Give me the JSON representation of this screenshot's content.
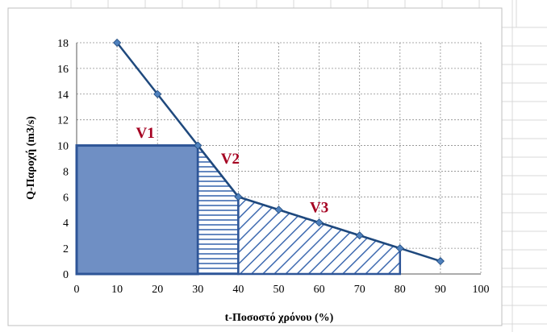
{
  "colors": {
    "series": "#1F497D",
    "region_fill": "#6F8FC4",
    "region_edge": "#2E5597",
    "hatch": "#3E6AB0",
    "label": "#A50021",
    "grid": "#8C8C8C",
    "sheet_grid": "#D9D9D9"
  },
  "chart_data": {
    "type": "line",
    "xlabel": "t-Ποσοστό χρόνου (%)",
    "ylabel": "Q-Παροχή (m3/s)",
    "xlim": [
      0,
      100
    ],
    "ylim": [
      0,
      18
    ],
    "xticks": [
      0,
      10,
      20,
      30,
      40,
      50,
      60,
      70,
      80,
      90,
      100
    ],
    "yticks": [
      0,
      2,
      4,
      6,
      8,
      10,
      12,
      14,
      16,
      18
    ],
    "grid": true,
    "series": [
      {
        "x": [
          10,
          20,
          30,
          40,
          50,
          60,
          70,
          80,
          90
        ],
        "y": [
          18,
          14,
          10,
          6,
          5,
          4,
          3,
          2,
          1
        ]
      }
    ],
    "regions": [
      {
        "label": "V1",
        "x_from": 0,
        "x_to": 30,
        "fill": "solid",
        "label_pos": [
          17,
          10.6
        ]
      },
      {
        "label": "V2",
        "x_from": 30,
        "x_to": 40,
        "fill": "horizontal-hatch",
        "label_pos": [
          38,
          8.6
        ]
      },
      {
        "label": "V3",
        "x_from": 40,
        "x_to": 80,
        "fill": "diagonal-hatch",
        "label_pos": [
          60,
          4.8
        ]
      }
    ]
  }
}
